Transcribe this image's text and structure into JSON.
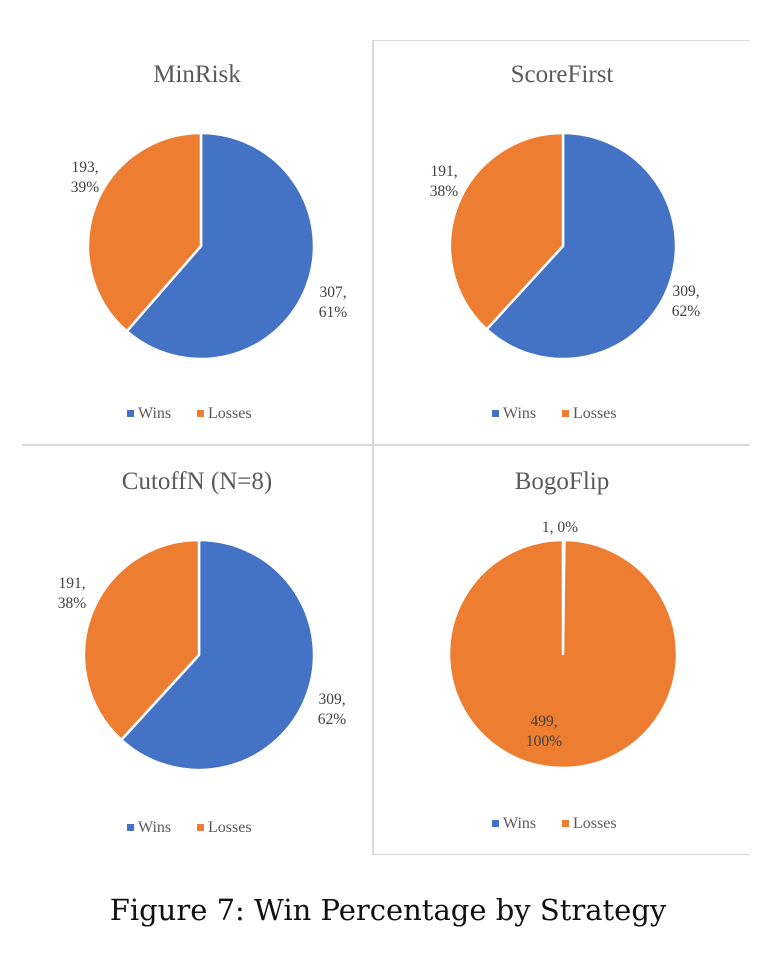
{
  "colors": {
    "wins": "#4472C4",
    "losses": "#ED7D31"
  },
  "legend": [
    "Wins",
    "Losses"
  ],
  "chart_data": [
    {
      "type": "pie",
      "title": "MinRisk",
      "categories": [
        "Wins",
        "Losses"
      ],
      "values": [
        307,
        193
      ],
      "labels": [
        [
          "307,",
          "61%"
        ],
        [
          "193,",
          "39%"
        ]
      ]
    },
    {
      "type": "pie",
      "title": "ScoreFirst",
      "categories": [
        "Wins",
        "Losses"
      ],
      "values": [
        309,
        191
      ],
      "labels": [
        [
          "309,",
          "62%"
        ],
        [
          "191,",
          "38%"
        ]
      ]
    },
    {
      "type": "pie",
      "title": "CutoffN (N=8)",
      "categories": [
        "Wins",
        "Losses"
      ],
      "values": [
        309,
        191
      ],
      "labels": [
        [
          "309,",
          "62%"
        ],
        [
          "191,",
          "38%"
        ]
      ]
    },
    {
      "type": "pie",
      "title": "BogoFlip",
      "categories": [
        "Wins",
        "Losses"
      ],
      "values": [
        1,
        499
      ],
      "labels": [
        [
          "1, 0%"
        ],
        [
          "499,",
          "100%"
        ]
      ]
    }
  ],
  "caption": "Figure 7: Win Percentage by Strategy"
}
